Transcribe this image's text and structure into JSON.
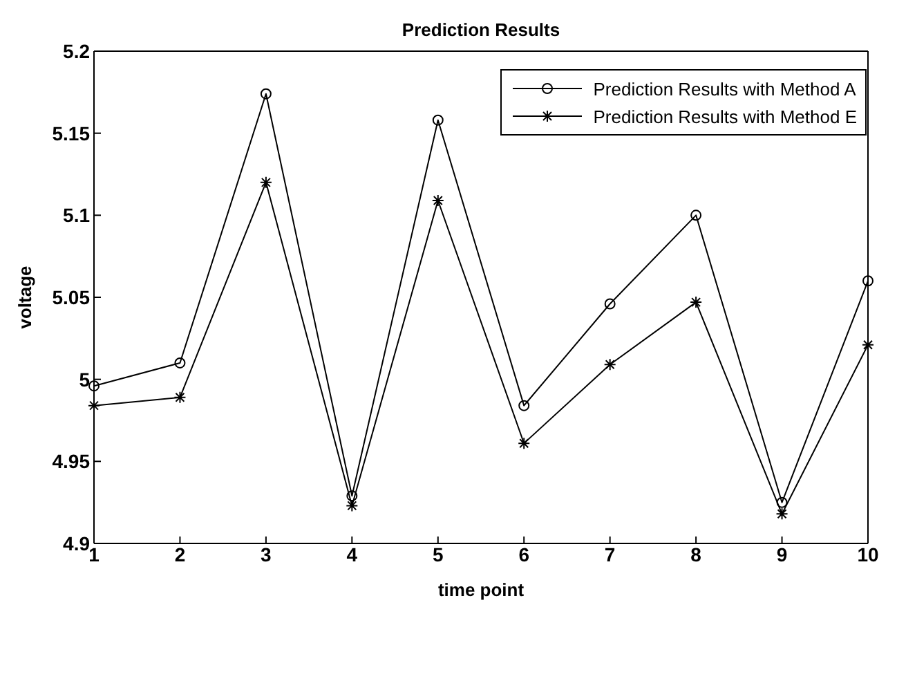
{
  "chart_data": {
    "type": "line",
    "title": "Prediction Results",
    "xlabel": "time point",
    "ylabel": "voltage",
    "x": [
      1,
      2,
      3,
      4,
      5,
      6,
      7,
      8,
      9,
      10
    ],
    "xlim": [
      1,
      10
    ],
    "xticks": [
      1,
      2,
      3,
      4,
      5,
      6,
      7,
      8,
      9,
      10
    ],
    "ylim": [
      4.9,
      5.2
    ],
    "yticks": [
      4.9,
      4.95,
      5,
      5.05,
      5.1,
      5.15,
      5.2
    ],
    "grid": false,
    "legend": "top right",
    "line_style": "solid",
    "series": [
      {
        "name": "Prediction Results with Method A",
        "color": "#000000",
        "marker": "circle",
        "values": [
          4.996,
          5.01,
          5.174,
          4.929,
          5.158,
          4.984,
          5.046,
          5.1,
          4.925,
          5.06
        ]
      },
      {
        "name": "Prediction Results with Method E",
        "color": "#000000",
        "marker": "cross",
        "values": [
          4.984,
          4.989,
          5.12,
          4.923,
          5.109,
          4.961,
          5.009,
          5.047,
          4.918,
          5.021
        ]
      }
    ]
  }
}
